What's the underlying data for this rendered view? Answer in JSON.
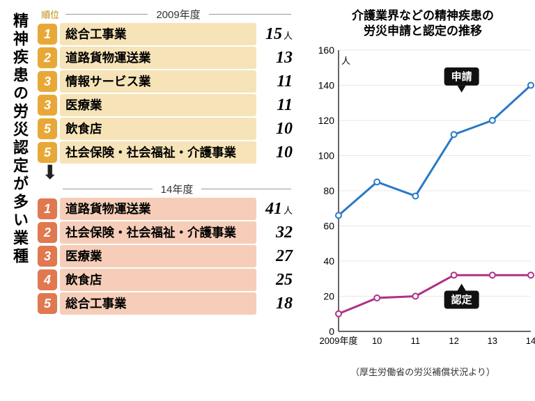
{
  "vertical_title": "精神疾患の労災認定が多い業種",
  "table_2009": {
    "rank_label": "順位",
    "year": "2009年度",
    "badge_bg": "#e8a838",
    "row_bg": "#f6e4b8",
    "rows": [
      {
        "rank": "1",
        "name": "総合工事業",
        "count": "15",
        "unit": "人"
      },
      {
        "rank": "2",
        "name": "道路貨物運送業",
        "count": "13",
        "unit": ""
      },
      {
        "rank": "3",
        "name": "情報サービス業",
        "count": "11",
        "unit": ""
      },
      {
        "rank": "3",
        "name": "医療業",
        "count": "11",
        "unit": ""
      },
      {
        "rank": "5",
        "name": "飲食店",
        "count": "10",
        "unit": ""
      },
      {
        "rank": "5",
        "name": "社会保険・社会福祉・介護事業",
        "count": "10",
        "unit": ""
      }
    ]
  },
  "table_2014": {
    "year": "14年度",
    "badge_bg": "#e07850",
    "row_bg": "#f5cdb8",
    "rows": [
      {
        "rank": "1",
        "name": "道路貨物運送業",
        "count": "41",
        "unit": "人"
      },
      {
        "rank": "2",
        "name": "社会保険・社会福祉・介護事業",
        "count": "32",
        "unit": ""
      },
      {
        "rank": "3",
        "name": "医療業",
        "count": "27",
        "unit": ""
      },
      {
        "rank": "4",
        "name": "飲食店",
        "count": "25",
        "unit": ""
      },
      {
        "rank": "5",
        "name": "総合工事業",
        "count": "18",
        "unit": ""
      }
    ]
  },
  "chart": {
    "title_l1": "介護業界などの精神疾患の",
    "title_l2": "労災申請と認定の推移",
    "y_unit": "人",
    "ylim": [
      0,
      160
    ],
    "ytick_step": 20,
    "x_categories": [
      "2009年度",
      "10",
      "11",
      "12",
      "13",
      "14"
    ],
    "series": [
      {
        "name": "申請",
        "color": "#2878c8",
        "values": [
          66,
          85,
          77,
          112,
          120,
          140
        ],
        "callout_x": 4.2,
        "callout_y": 145
      },
      {
        "name": "認定",
        "color": "#b03088",
        "values": [
          10,
          19,
          20,
          32,
          32,
          32
        ],
        "callout_x": 4.2,
        "callout_y": 18
      }
    ],
    "grid_color": "#e8e8e8",
    "marker_fill": "#ffffff",
    "line_width": 3,
    "marker_r": 4
  },
  "source": "（厚生労働省の労災補償状況より）"
}
